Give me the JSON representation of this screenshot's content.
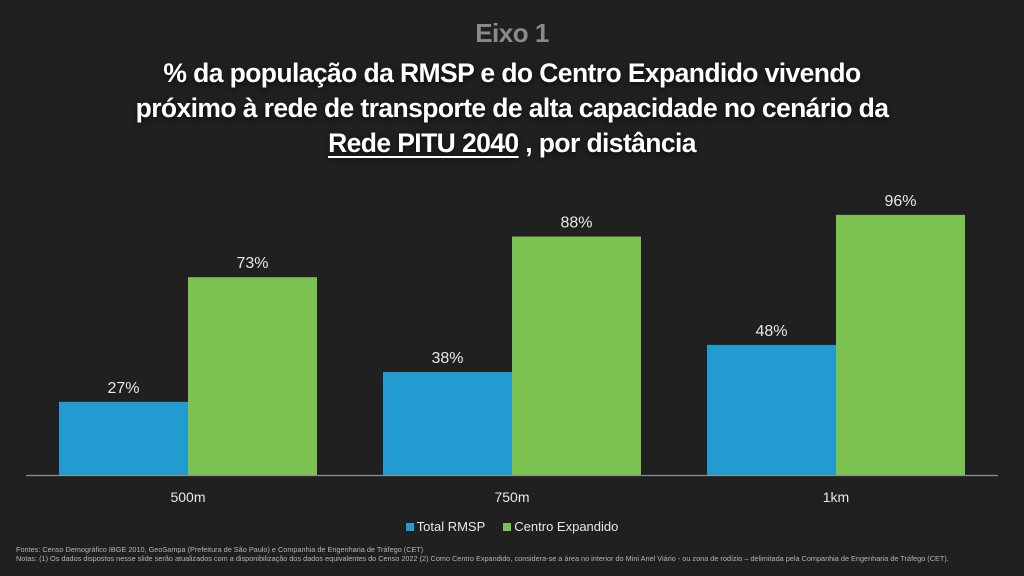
{
  "header": {
    "eyebrow": "Eixo 1",
    "title_line1": "% da população da RMSP e do Centro Expandido vivendo",
    "title_line2": "próximo à rede de transporte de alta capacidade no cenário da",
    "title_line3_underlined": "Rede PITU 2040",
    "title_line3_rest": " , por distância"
  },
  "colors": {
    "background": "#202020",
    "total_rmsp": "#219BD0",
    "centro_expandido": "#7CC250",
    "axis": "#8f8f8f",
    "label": "#e8e8e8"
  },
  "chart_data": {
    "type": "bar",
    "title": "% da população da RMSP e do Centro Expandido vivendo próximo à rede de transporte de alta capacidade no cenário da Rede PITU 2040, por distância",
    "xlabel": "",
    "ylabel": "",
    "ylim": [
      0,
      100
    ],
    "grid": false,
    "legend_position": "bottom",
    "categories": [
      "500m",
      "750m",
      "1km"
    ],
    "series": [
      {
        "name": "Total RMSP",
        "values": [
          27,
          38,
          48
        ],
        "labels": [
          "27%",
          "38%",
          "48%"
        ],
        "color": "#219BD0"
      },
      {
        "name": "Centro Expandido",
        "values": [
          73,
          88,
          96
        ],
        "labels": [
          "73%",
          "88%",
          "96%"
        ],
        "color": "#7CC250"
      }
    ]
  },
  "legend": {
    "items": [
      {
        "label": "Total RMSP",
        "color": "#219BD0"
      },
      {
        "label": "Centro Expandido",
        "color": "#7CC250"
      }
    ]
  },
  "footnote": {
    "line1": "Fontes: Censo Demográfico IBGE 2010, GeoSampa (Prefeitura de São Paulo) e Companhia de Engenharia de Tráfego (CET)",
    "line2": "Notas: (1) Os dados dispostos nesse slide serão atualizados com a disponibilização dos dados equivalentes do Censo 2022 (2) Como Centro Expandido, considera-se  a área no interior do Mini Anel Viário - ou zona de rodízio – delimitada pela Companhia de Engenharia de Tráfego (CET)."
  }
}
